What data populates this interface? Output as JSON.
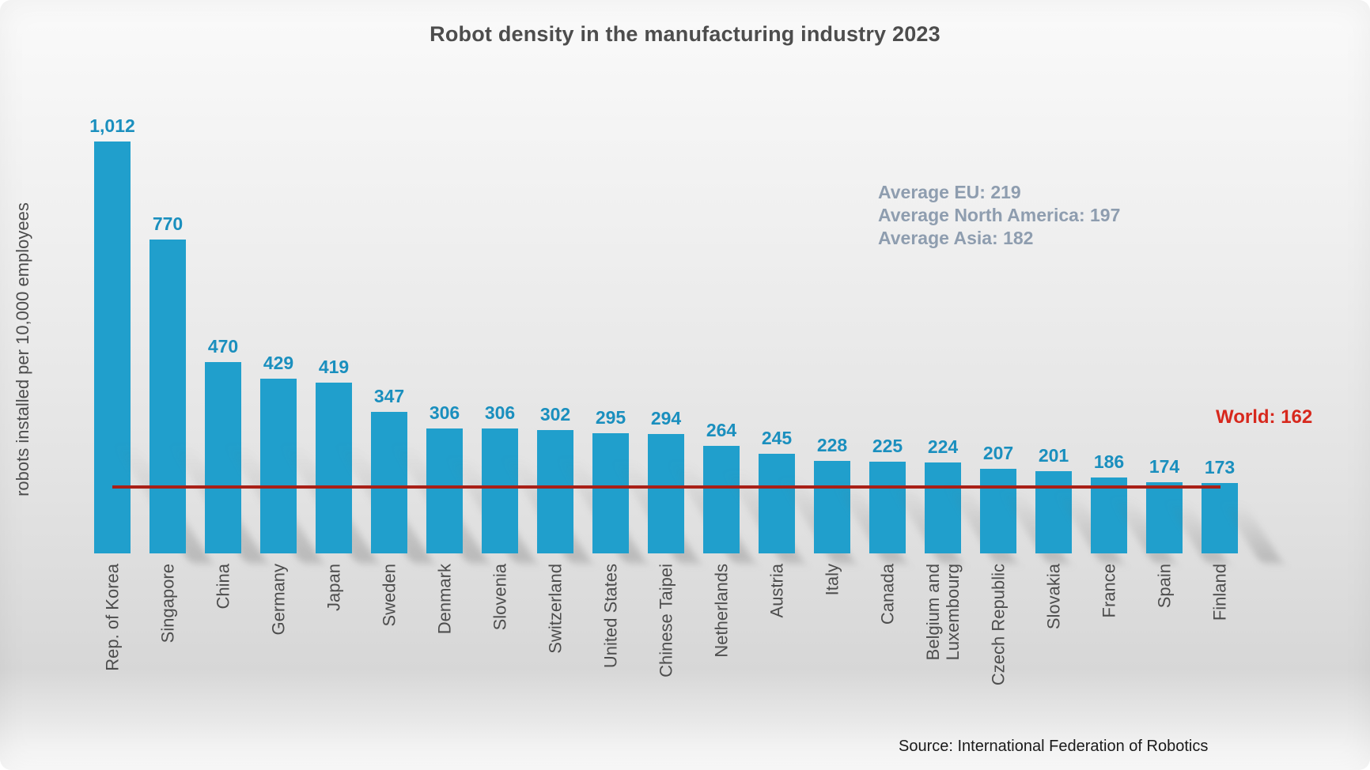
{
  "chart_data": {
    "type": "bar",
    "title": "Robot density in the manufacturing industry 2023",
    "ylabel": "robots installed per 10,000 employees",
    "categories": [
      "Rep. of Korea",
      "Singapore",
      "China",
      "Germany",
      "Japan",
      "Sweden",
      "Denmark",
      "Slovenia",
      "Switzerland",
      "United States",
      "Chinese Taipei",
      "Netherlands",
      "Austria",
      "Italy",
      "Canada",
      "Belgium and\nLuxembourg",
      "Czech Republic",
      "Slovakia",
      "France",
      "Spain",
      "Finland"
    ],
    "values": [
      1012,
      770,
      470,
      429,
      419,
      347,
      306,
      306,
      302,
      295,
      294,
      264,
      245,
      228,
      225,
      224,
      207,
      201,
      186,
      174,
      173
    ],
    "value_labels": [
      "1,012",
      "770",
      "470",
      "429",
      "419",
      "347",
      "306",
      "306",
      "302",
      "295",
      "294",
      "264",
      "245",
      "228",
      "225",
      "224",
      "207",
      "201",
      "186",
      "174",
      "173"
    ],
    "ylim": [
      0,
      1090
    ],
    "grid": false,
    "legend": "none",
    "bar_color": "#209fcc",
    "value_label_color": "#1a8fbe",
    "annotations": {
      "lines": [
        "Average EU: 219",
        "Average North America: 197",
        "Average Asia: 182"
      ],
      "color": "#8e9daf"
    },
    "reference_line": {
      "value": 162,
      "label": "World: 162",
      "line_color": "#a92017",
      "label_color": "#d7281d"
    },
    "source": "Source: International Federation of Robotics"
  }
}
